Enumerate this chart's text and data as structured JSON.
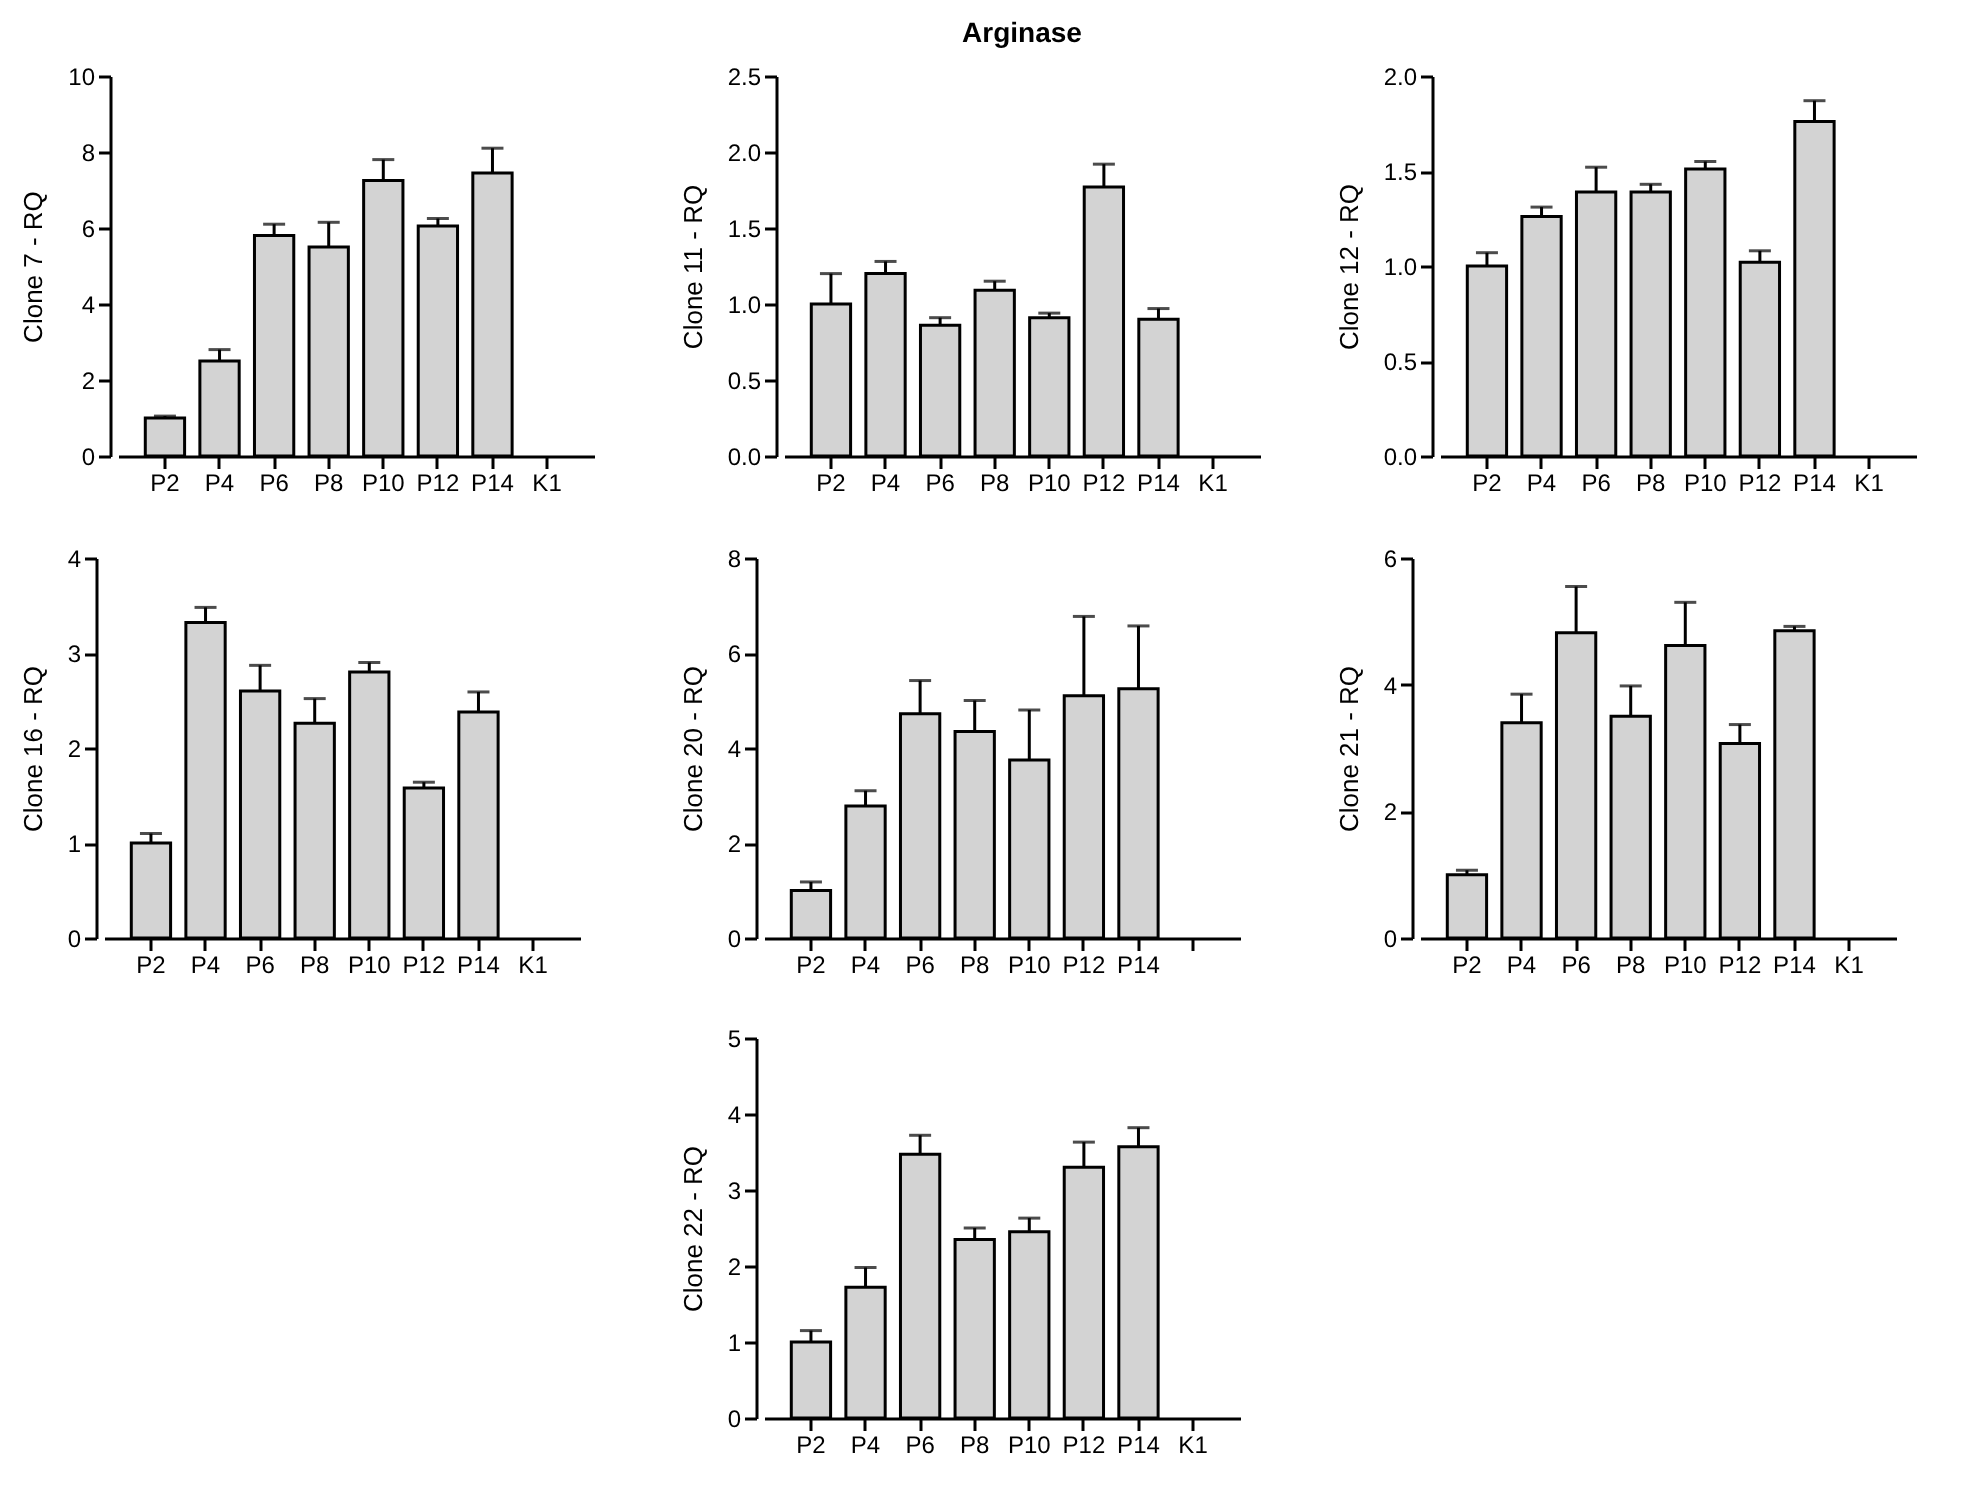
{
  "chart_data": [
    {
      "type": "bar",
      "ylabel": "Clone 7 - RQ",
      "categories": [
        "P2",
        "P4",
        "P6",
        "P8",
        "P10",
        "P12",
        "P14",
        "K1"
      ],
      "values": [
        1.0,
        2.5,
        5.8,
        5.5,
        7.25,
        6.05,
        7.45,
        null
      ],
      "errors": [
        [
          1.0,
          1.05
        ],
        [
          2.5,
          2.8
        ],
        [
          5.8,
          6.1
        ],
        [
          5.5,
          6.15
        ],
        [
          7.25,
          7.8
        ],
        [
          6.05,
          6.25
        ],
        [
          7.45,
          8.1
        ],
        null
      ],
      "color": "#d3d3d3",
      "ylim": [
        0,
        10
      ],
      "yticks": [
        0,
        2,
        4,
        6,
        8,
        10
      ]
    },
    {
      "type": "bar",
      "title": "Arginase",
      "ylabel": "Clone 11 - RQ",
      "categories": [
        "P2",
        "P4",
        "P6",
        "P8",
        "P10",
        "P12",
        "P14",
        "K1"
      ],
      "values": [
        1.0,
        1.2,
        0.86,
        1.09,
        0.91,
        1.77,
        0.9,
        null
      ],
      "errors": [
        [
          1.0,
          1.2
        ],
        [
          1.2,
          1.28
        ],
        [
          0.86,
          0.91
        ],
        [
          1.09,
          1.15
        ],
        [
          0.91,
          0.94
        ],
        [
          1.77,
          1.92
        ],
        [
          0.9,
          0.97
        ],
        null
      ],
      "color": "#d3d3d3",
      "ylim": [
        0,
        2.5
      ],
      "yticks": [
        {
          "value": 0,
          "label": "0.0"
        },
        {
          "value": 0.5,
          "label": "0.5"
        },
        {
          "value": 1,
          "label": "1.0"
        },
        {
          "value": 1.5,
          "label": "1.5"
        },
        {
          "value": 2,
          "label": "2.0"
        },
        {
          "value": 2.5,
          "label": "2.5"
        }
      ]
    },
    {
      "type": "bar",
      "ylabel": "Clone 12 - RQ",
      "categories": [
        "P2",
        "P4",
        "P6",
        "P8",
        "P10",
        "P12",
        "P14",
        "K1"
      ],
      "values": [
        1.0,
        1.26,
        1.39,
        1.39,
        1.51,
        1.02,
        1.76,
        null
      ],
      "errors": [
        [
          1.0,
          1.07
        ],
        [
          1.26,
          1.31
        ],
        [
          1.39,
          1.52
        ],
        [
          1.39,
          1.43
        ],
        [
          1.51,
          1.55
        ],
        [
          1.02,
          1.08
        ],
        [
          1.76,
          1.87
        ],
        null
      ],
      "color": "#d3d3d3",
      "ylim": [
        0,
        2
      ],
      "yticks": [
        {
          "value": 0,
          "label": "0.0"
        },
        {
          "value": 0.5,
          "label": "0.5"
        },
        {
          "value": 1,
          "label": "1.0"
        },
        {
          "value": 1.5,
          "label": "1.5"
        },
        {
          "value": 2,
          "label": "2.0"
        }
      ]
    },
    {
      "type": "bar",
      "ylabel": "Clone 16 - RQ",
      "categories": [
        "P2",
        "P4",
        "P6",
        "P8",
        "P10",
        "P12",
        "P14",
        "K1"
      ],
      "values": [
        1.0,
        3.32,
        2.6,
        2.26,
        2.8,
        1.58,
        2.38,
        null
      ],
      "errors": [
        [
          1.0,
          1.1
        ],
        [
          3.32,
          3.48
        ],
        [
          2.6,
          2.87
        ],
        [
          2.26,
          2.52
        ],
        [
          2.8,
          2.9
        ],
        [
          1.58,
          1.64
        ],
        [
          2.38,
          2.59
        ],
        null
      ],
      "color": "#d3d3d3",
      "ylim": [
        0,
        4
      ],
      "yticks": [
        0,
        1,
        2,
        3,
        4
      ]
    },
    {
      "type": "bar",
      "ylabel": "Clone 20 - RQ",
      "categories": [
        "P2",
        "P4",
        "P6",
        "P8",
        "P10",
        "P12",
        "P14",
        null
      ],
      "values": [
        1.0,
        2.78,
        4.72,
        4.35,
        3.75,
        5.1,
        5.25,
        null
      ],
      "errors": [
        [
          1.0,
          1.18
        ],
        [
          2.78,
          3.1
        ],
        [
          4.72,
          5.42
        ],
        [
          4.35,
          5.0
        ],
        [
          3.75,
          4.8
        ],
        [
          5.1,
          6.77
        ],
        [
          5.25,
          6.57
        ],
        null
      ],
      "color": "#d3d3d3",
      "ylim": [
        0,
        8
      ],
      "yticks": [
        0,
        2,
        4,
        6,
        8
      ]
    },
    {
      "type": "bar",
      "ylabel": "Clone 21 - RQ",
      "categories": [
        "P2",
        "P4",
        "P6",
        "P8",
        "P10",
        "P12",
        "P14",
        "K1"
      ],
      "values": [
        1.0,
        3.4,
        4.82,
        3.5,
        4.62,
        3.07,
        4.85,
        null
      ],
      "errors": [
        [
          1.0,
          1.07
        ],
        [
          3.4,
          3.85
        ],
        [
          4.82,
          5.55
        ],
        [
          3.5,
          3.98
        ],
        [
          4.62,
          5.3
        ],
        [
          3.07,
          3.37
        ],
        [
          4.85,
          4.92
        ],
        null
      ],
      "color": "#d3d3d3",
      "ylim": [
        0,
        6
      ],
      "yticks": [
        0,
        2,
        4,
        6
      ]
    },
    {
      "type": "bar",
      "ylabel": "Clone 22 - RQ",
      "categories": [
        "P2",
        "P4",
        "P6",
        "P8",
        "P10",
        "P12",
        "P14",
        "K1"
      ],
      "values": [
        1.0,
        1.72,
        3.47,
        2.35,
        2.45,
        3.3,
        3.57,
        null
      ],
      "errors": [
        [
          1.0,
          1.15
        ],
        [
          1.72,
          1.98
        ],
        [
          3.47,
          3.72
        ],
        [
          2.35,
          2.5
        ],
        [
          2.45,
          2.63
        ],
        [
          3.3,
          3.63
        ],
        [
          3.57,
          3.82
        ],
        null
      ],
      "color": "#d3d3d3",
      "ylim": [
        0,
        5
      ],
      "yticks": [
        0,
        1,
        2,
        3,
        4,
        5
      ]
    }
  ]
}
